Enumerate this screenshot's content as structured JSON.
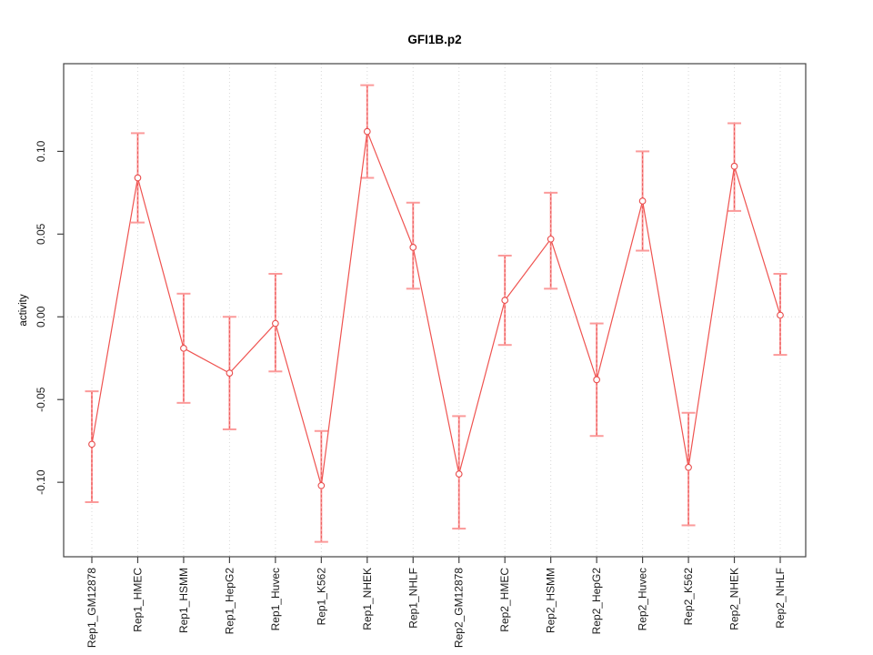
{
  "figure": {
    "background_color": "#ffffff",
    "border": "none"
  },
  "chart_data": {
    "type": "line",
    "subtype": "point-estimates-with-error-bars",
    "title": "GFI1B.p2",
    "xlabel": "",
    "ylabel": "activity",
    "legend": "none",
    "grid": "dotted vertical gridline at each category; dotted horizontal line at y=0",
    "marker": "open-circle",
    "categories": [
      "Rep1_GM12878",
      "Rep1_HMEC",
      "Rep1_HSMM",
      "Rep1_HepG2",
      "Rep1_Huvec",
      "Rep1_K562",
      "Rep1_NHEK",
      "Rep1_NHLF",
      "Rep2_GM12878",
      "Rep2_HMEC",
      "Rep2_HSMM",
      "Rep2_HepG2",
      "Rep2_Huvec",
      "Rep2_K562",
      "Rep2_NHEK",
      "Rep2_NHLF"
    ],
    "series": [
      {
        "name": "activity",
        "values": [
          -0.077,
          0.084,
          -0.019,
          -0.034,
          -0.004,
          -0.102,
          0.112,
          0.042,
          -0.095,
          0.01,
          0.047,
          -0.038,
          0.07,
          -0.091,
          0.091,
          0.001
        ],
        "error_high": [
          -0.045,
          0.111,
          0.014,
          0.0,
          0.026,
          -0.069,
          0.14,
          0.069,
          -0.06,
          0.037,
          0.075,
          -0.004,
          0.1,
          -0.058,
          0.117,
          0.026
        ],
        "error_low": [
          -0.112,
          0.057,
          -0.052,
          -0.068,
          -0.033,
          -0.136,
          0.084,
          0.017,
          -0.128,
          -0.017,
          0.017,
          -0.072,
          0.04,
          -0.126,
          0.064,
          -0.023
        ]
      }
    ],
    "ylim": [
      -0.145,
      0.153
    ],
    "y_ticks": [
      {
        "value": 0.1,
        "label": "0.10"
      },
      {
        "value": 0.05,
        "label": "0.05"
      },
      {
        "value": 0.0,
        "label": "0.00"
      },
      {
        "value": -0.05,
        "label": "-0.05"
      },
      {
        "value": -0.1,
        "label": "-0.10"
      }
    ],
    "colors": {
      "line": "#ef5350",
      "marker_stroke": "#e84b4b",
      "error_bar": "#fb9a9a",
      "error_bar_dash_overlay": "#e84b4b",
      "gridline": "#d8d8d8",
      "axis_frame": "#444444",
      "tick": "#444444",
      "text": "#1a1a1a"
    }
  }
}
